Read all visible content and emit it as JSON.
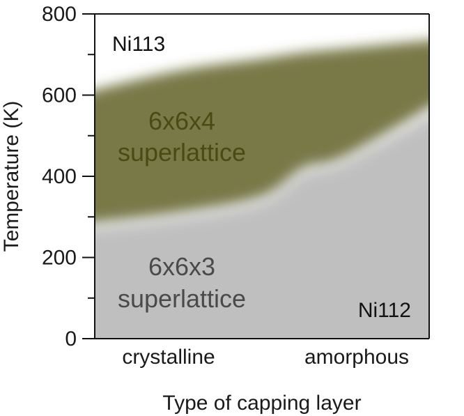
{
  "chart_data": {
    "type": "area",
    "title": "",
    "xlabel": "Type of capping layer",
    "ylabel": "Temperature (K)",
    "x_categories": [
      "crystalline",
      "amorphous"
    ],
    "ylim": [
      0,
      800
    ],
    "yticks": [
      0,
      200,
      400,
      600,
      800
    ],
    "yticks_minor": [
      100,
      300,
      500,
      700
    ],
    "grid": false,
    "x": [
      0.0,
      0.25,
      0.5,
      0.625,
      0.75,
      1.0
    ],
    "regions": [
      {
        "name": "6x6x4 superlattice",
        "label_lines": [
          "6x6x4",
          "superlattice"
        ],
        "color": "#5c5c1e",
        "upper": [
          600,
          660,
          690,
          705,
          715,
          740
        ],
        "lower": [
          280,
          310,
          350,
          420,
          450,
          600
        ]
      },
      {
        "name": "6x6x3 superlattice",
        "label_lines": [
          "6x6x3",
          "superlattice"
        ],
        "color": "#8a8a8a",
        "upper": [
          270,
          300,
          340,
          410,
          440,
          580
        ],
        "lower": [
          0,
          0,
          0,
          0,
          0,
          0
        ]
      }
    ],
    "annotations": [
      "Ni113",
      "Ni112"
    ]
  }
}
